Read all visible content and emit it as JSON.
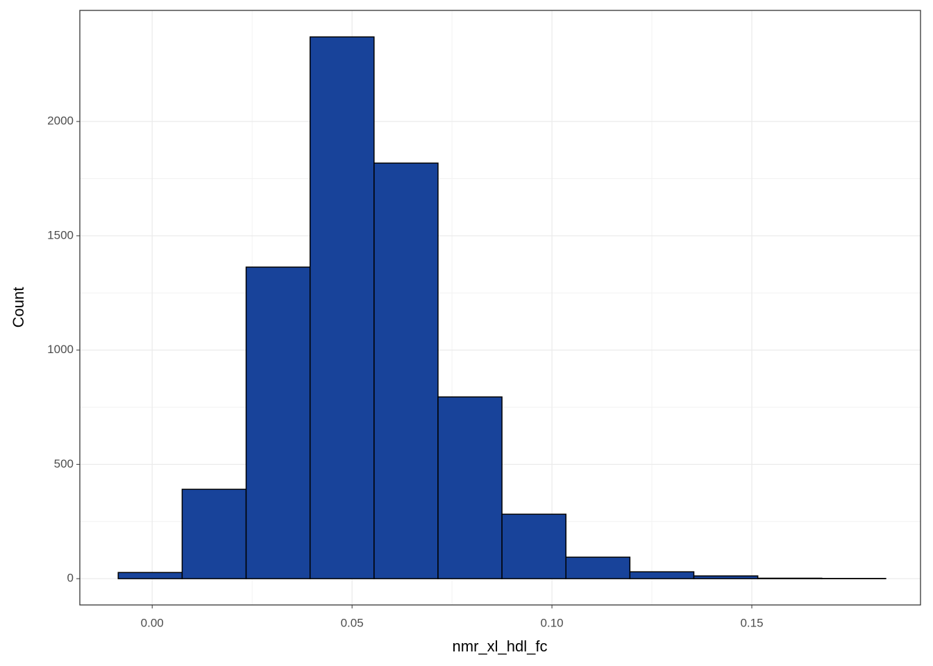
{
  "chart_data": {
    "type": "histogram",
    "x_label": "nmr_xl_hdl_fc",
    "y_label": "Count",
    "bins": [
      -0.0085,
      0.0075,
      0.0235,
      0.0395,
      0.0555,
      0.0715,
      0.0875,
      0.1035,
      0.1195,
      0.1355,
      0.1515,
      0.1675,
      0.1835
    ],
    "values": [
      27,
      391,
      1363,
      2370,
      1818,
      795,
      282,
      94,
      30,
      12,
      2,
      1
    ],
    "color": "#18439a",
    "xlim": [
      -0.0181,
      0.1922
    ],
    "ylim": [
      -115,
      2486
    ],
    "xticks": [
      {
        "value": 0,
        "label": "0.00"
      },
      {
        "value": 0.05,
        "label": "0.05"
      },
      {
        "value": 0.1,
        "label": "0.10"
      },
      {
        "value": 0.15,
        "label": "0.15"
      }
    ],
    "yticks": [
      0,
      500,
      1000,
      1500,
      2000
    ],
    "grid": true
  }
}
